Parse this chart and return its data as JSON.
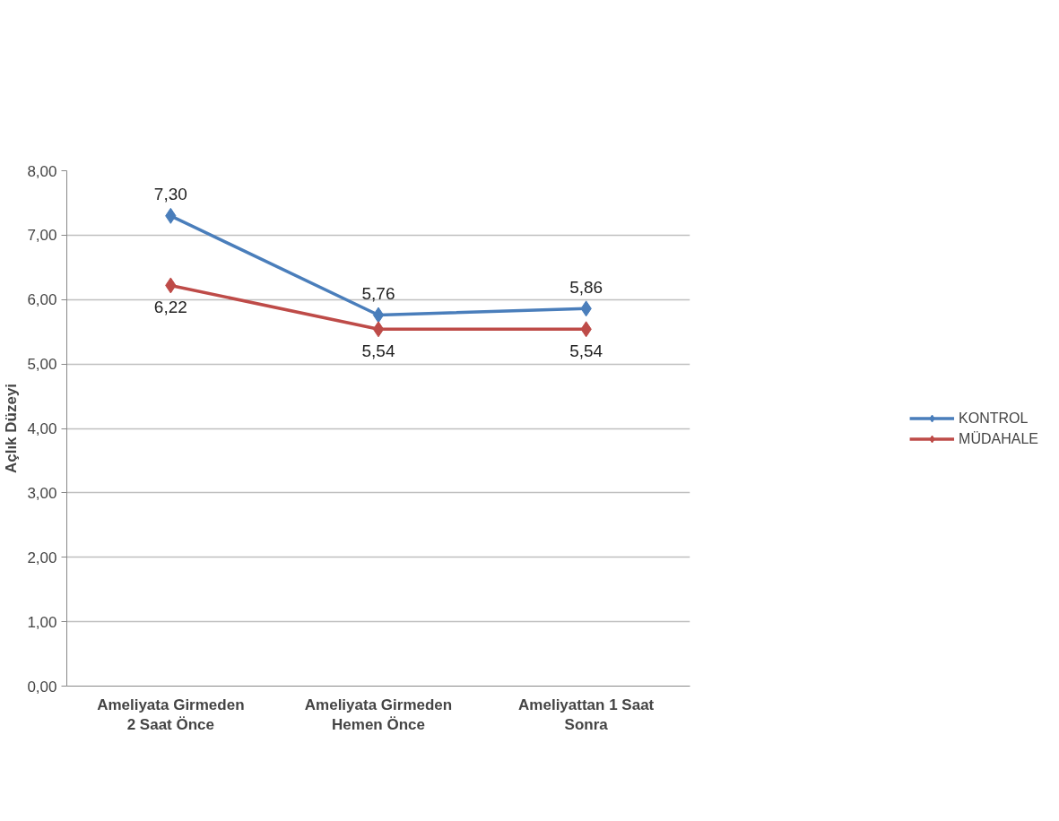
{
  "chart_data": {
    "type": "line",
    "ylabel": "Açlık Düzeyi",
    "categories": [
      "Ameliyata Girmeden\n2 Saat Önce",
      "Ameliyata Girmeden\nHemen Önce",
      "Ameliyattan 1 Saat\nSonra"
    ],
    "series": [
      {
        "name": "KONTROL",
        "color": "#4a7ebb",
        "values": [
          7.3,
          5.76,
          5.86
        ],
        "value_labels": [
          "7,30",
          "5,76",
          "5,86"
        ]
      },
      {
        "name": "MÜDAHALE",
        "color": "#be4b48",
        "values": [
          6.22,
          5.54,
          5.54
        ],
        "value_labels": [
          "6,22",
          "5,54",
          "5,54"
        ]
      }
    ],
    "ylim": [
      0,
      8
    ],
    "yticks": [
      {
        "value": 0,
        "label": "0,00"
      },
      {
        "value": 1,
        "label": "1,00"
      },
      {
        "value": 2,
        "label": "2,00"
      },
      {
        "value": 3,
        "label": "3,00"
      },
      {
        "value": 4,
        "label": "4,00"
      },
      {
        "value": 5,
        "label": "5,00"
      },
      {
        "value": 6,
        "label": "6,00"
      },
      {
        "value": 7,
        "label": "7,00"
      },
      {
        "value": 8,
        "label": "8,00"
      }
    ],
    "grid": "y",
    "legend": "right",
    "marker": "diamond",
    "line_style": "solid"
  }
}
